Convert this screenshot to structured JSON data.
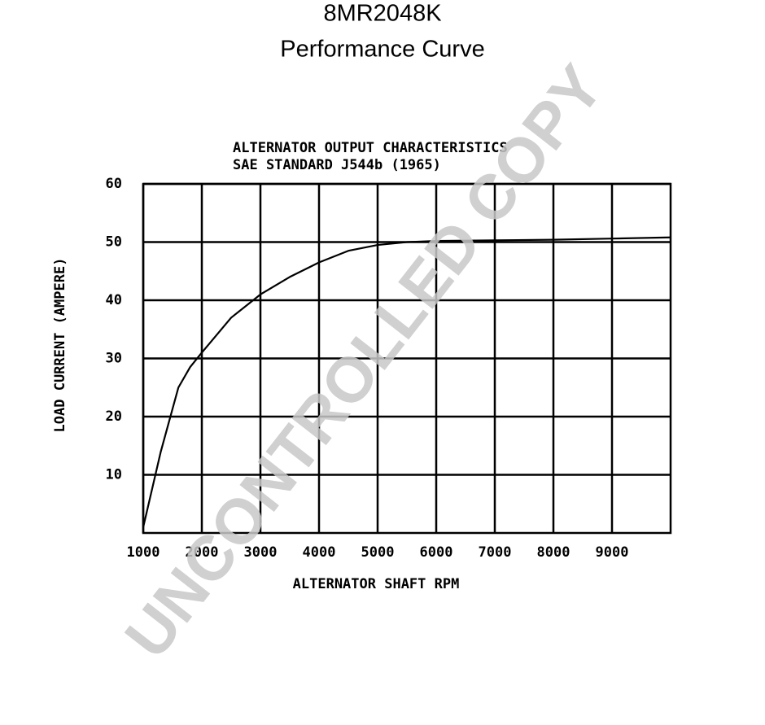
{
  "chart_data": {
    "type": "line",
    "title": [
      "8MR2048K",
      "Performance Curve"
    ],
    "subtitle": [
      "ALTERNATOR OUTPUT CHARACTERISTICS",
      "SAE STANDARD J544b (1965)"
    ],
    "x_label": "ALTERNATOR SHAFT RPM",
    "y_label": "LOAD CURRENT (AMPERE)",
    "watermark": "UNCONTROLLED COPY",
    "x": [
      1000,
      1300,
      1600,
      1800,
      2000,
      2500,
      3000,
      3500,
      4000,
      4500,
      5000,
      5500,
      6000,
      7000,
      8000,
      9000,
      10000
    ],
    "series": [
      {
        "color": "#000000",
        "values": [
          1,
          14,
          25,
          28.5,
          31,
          37,
          41,
          44,
          46.5,
          48.5,
          49.5,
          50,
          50.2,
          50.3,
          50.4,
          50.6,
          50.8
        ]
      }
    ],
    "xlim": [
      1000,
      10000
    ],
    "xticks": [
      1000,
      2000,
      3000,
      4000,
      5000,
      6000,
      7000,
      8000,
      9000
    ],
    "ylim": [
      0,
      60
    ],
    "yticks": [
      10,
      20,
      30,
      40,
      50,
      60
    ],
    "grid": true
  }
}
